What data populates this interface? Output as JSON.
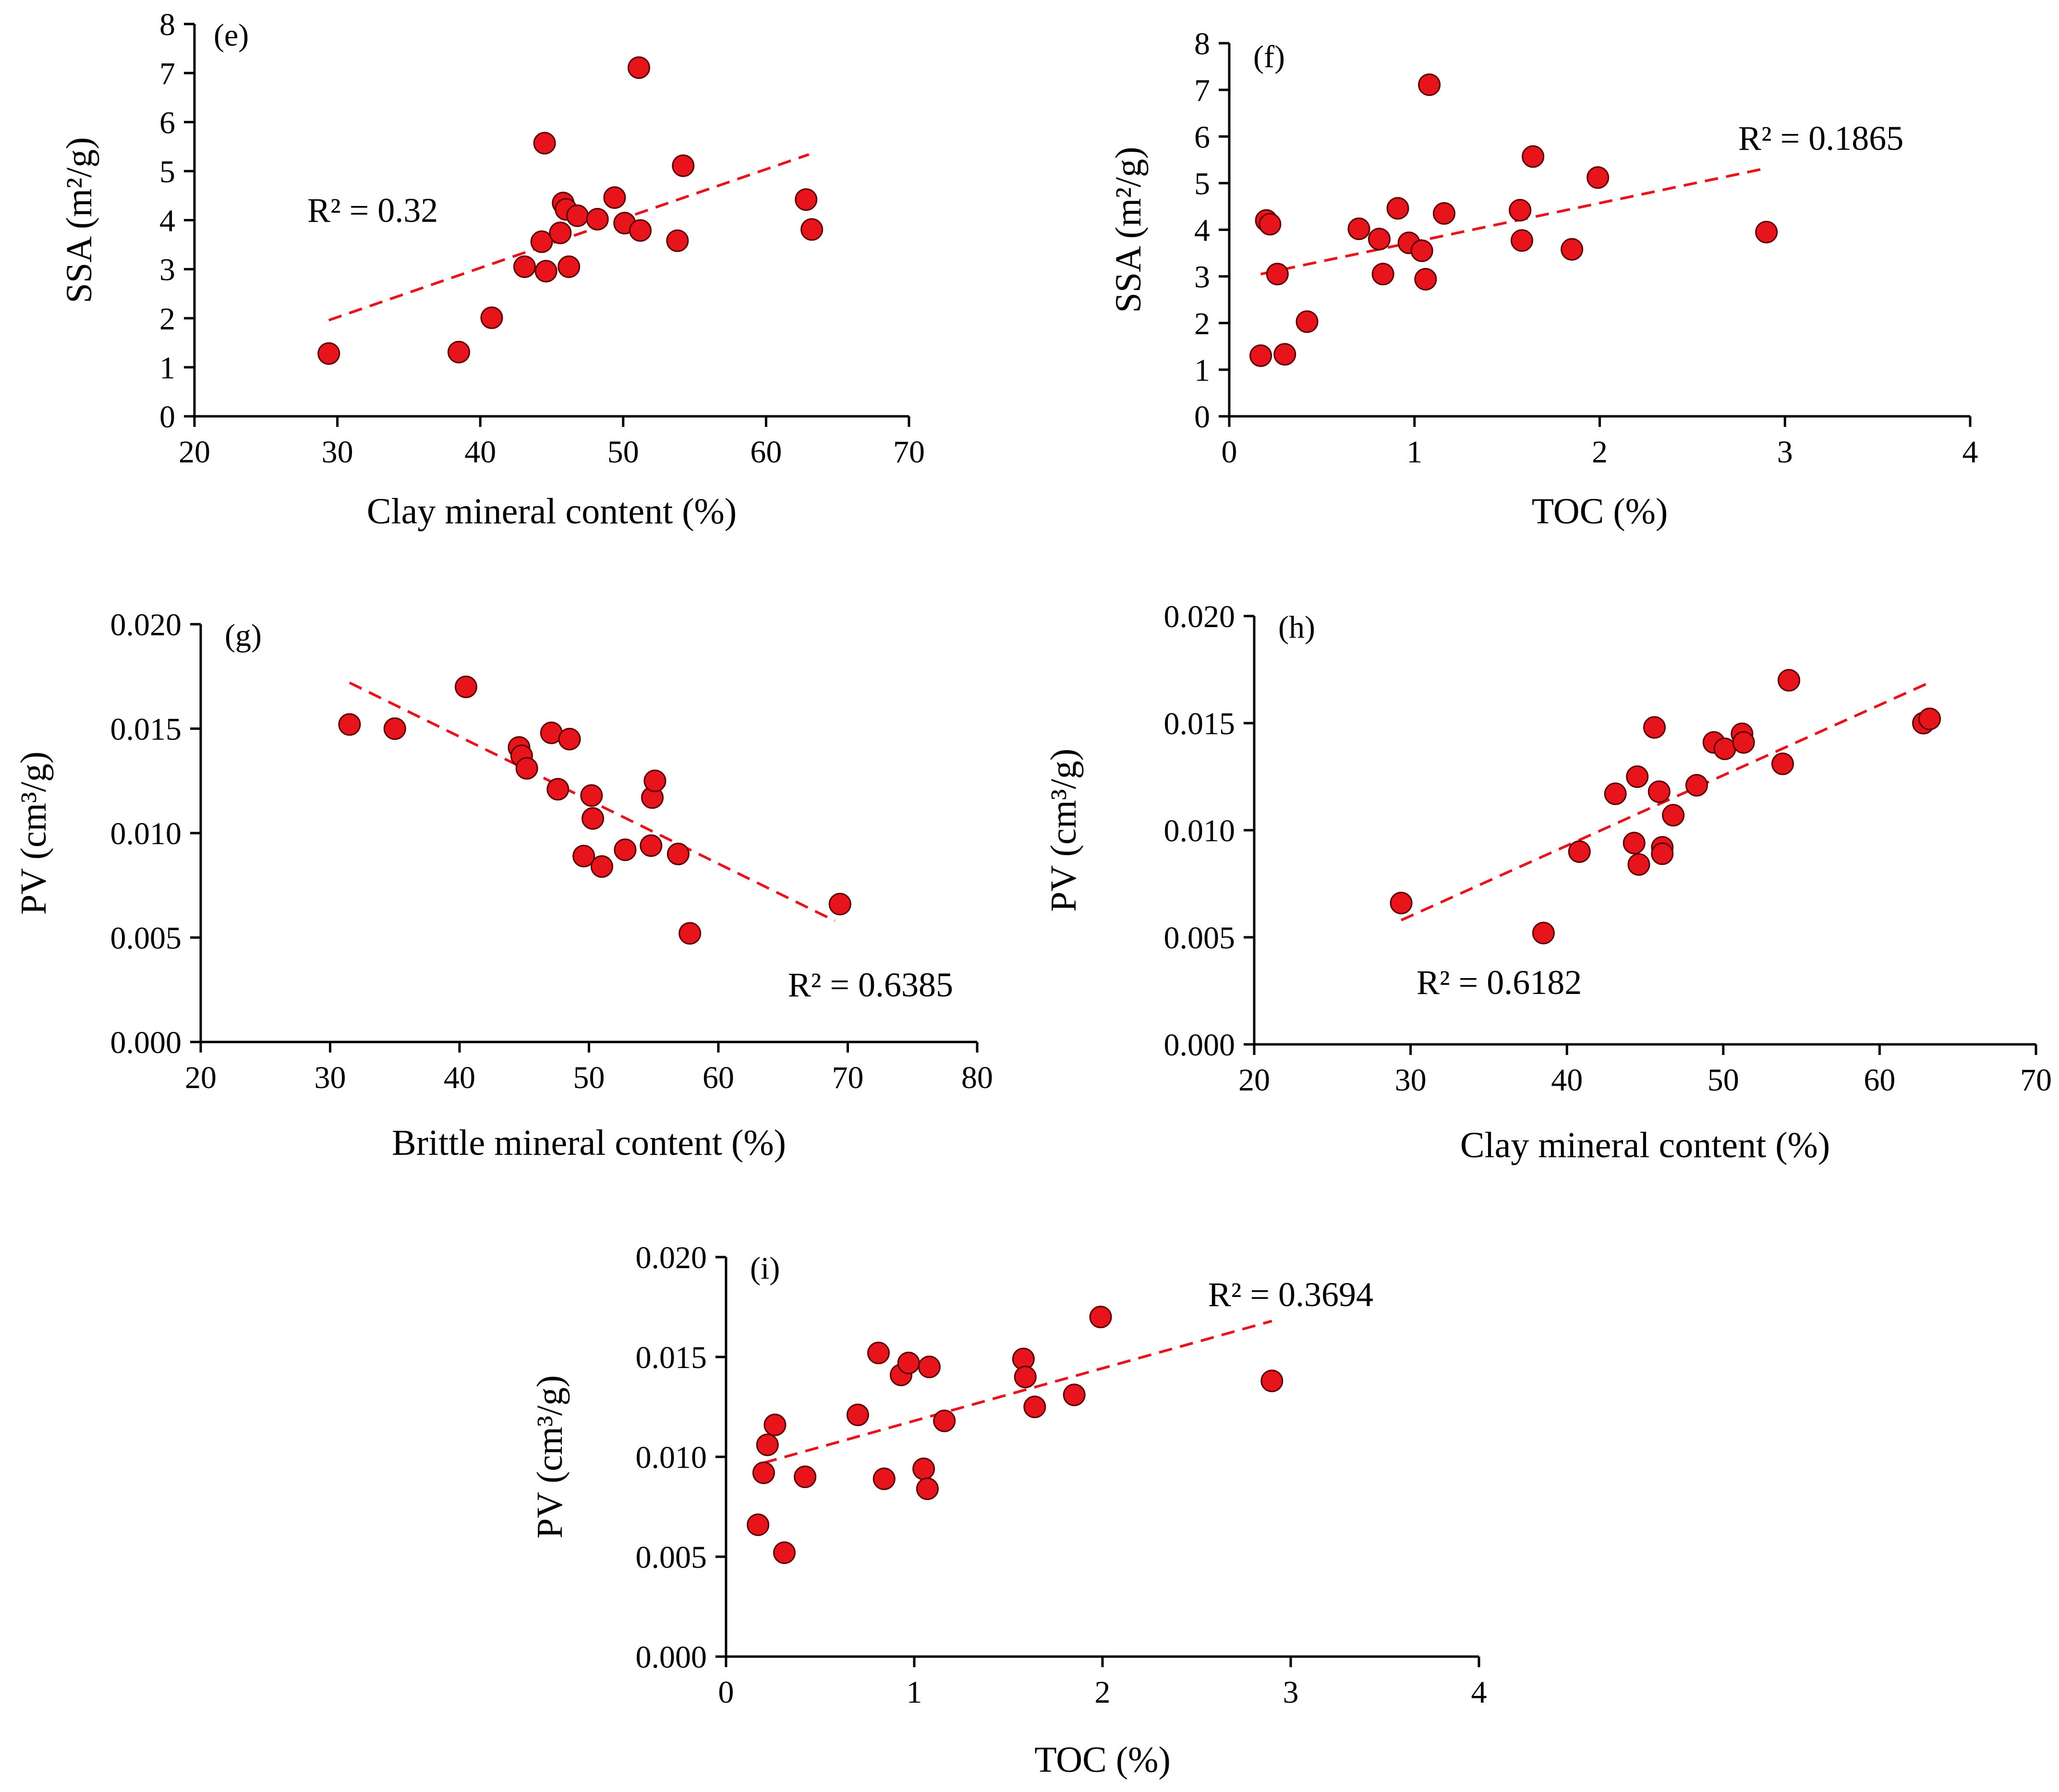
{
  "colors": {
    "marker_fill": "#e8141b",
    "marker_edge": "#5a0000",
    "trendline": "#e8141b",
    "axis": "#000000",
    "background": "#ffffff"
  },
  "chart_data": [
    {
      "id": "e",
      "type": "scatter",
      "panel_label": "(e)",
      "xlabel": "Clay mineral content (%)",
      "ylabel": "SSA (m²/g)",
      "xlim": [
        20,
        70
      ],
      "ylim": [
        0,
        8
      ],
      "xticks": [
        20,
        30,
        40,
        50,
        60,
        70
      ],
      "yticks": [
        0,
        1,
        2,
        3,
        4,
        5,
        6,
        7,
        8
      ],
      "ytick_decimals": 0,
      "r2_label": "R² = 0.32",
      "trendline": {
        "x": [
          29.4,
          63.0
        ],
        "y": [
          1.96,
          5.34
        ]
      },
      "points": [
        {
          "x": 29.4,
          "y": 1.28
        },
        {
          "x": 38.5,
          "y": 1.31
        },
        {
          "x": 40.8,
          "y": 2.01
        },
        {
          "x": 43.1,
          "y": 3.05
        },
        {
          "x": 44.3,
          "y": 3.56
        },
        {
          "x": 44.5,
          "y": 5.57
        },
        {
          "x": 44.6,
          "y": 2.96
        },
        {
          "x": 45.6,
          "y": 3.74
        },
        {
          "x": 45.8,
          "y": 4.35
        },
        {
          "x": 46.0,
          "y": 4.22
        },
        {
          "x": 46.2,
          "y": 3.05
        },
        {
          "x": 46.8,
          "y": 4.09
        },
        {
          "x": 48.2,
          "y": 4.02
        },
        {
          "x": 49.4,
          "y": 4.46
        },
        {
          "x": 50.1,
          "y": 3.94
        },
        {
          "x": 51.1,
          "y": 7.11
        },
        {
          "x": 51.2,
          "y": 3.79
        },
        {
          "x": 53.8,
          "y": 3.58
        },
        {
          "x": 54.2,
          "y": 5.11
        },
        {
          "x": 62.8,
          "y": 4.42
        },
        {
          "x": 63.2,
          "y": 3.81
        }
      ]
    },
    {
      "id": "f",
      "type": "scatter",
      "panel_label": "(f)",
      "xlabel": "TOC (%)",
      "ylabel": "SSA (m²/g)",
      "xlim": [
        0,
        4
      ],
      "ylim": [
        0,
        8
      ],
      "xticks": [
        0,
        1,
        2,
        3,
        4
      ],
      "yticks": [
        0,
        1,
        2,
        3,
        4,
        5,
        6,
        7,
        8
      ],
      "ytick_decimals": 0,
      "r2_label": "R² = 0.1865",
      "trendline": {
        "x": [
          0.17,
          2.9
        ],
        "y": [
          3.05,
          5.32
        ]
      },
      "points": [
        {
          "x": 0.17,
          "y": 1.3
        },
        {
          "x": 0.2,
          "y": 4.2
        },
        {
          "x": 0.22,
          "y": 4.12
        },
        {
          "x": 0.26,
          "y": 3.05
        },
        {
          "x": 0.3,
          "y": 1.33
        },
        {
          "x": 0.42,
          "y": 2.03
        },
        {
          "x": 0.7,
          "y": 4.02
        },
        {
          "x": 0.81,
          "y": 3.8
        },
        {
          "x": 0.83,
          "y": 3.05
        },
        {
          "x": 0.91,
          "y": 4.46
        },
        {
          "x": 0.97,
          "y": 3.72
        },
        {
          "x": 1.04,
          "y": 3.55
        },
        {
          "x": 1.06,
          "y": 2.94
        },
        {
          "x": 1.08,
          "y": 7.11
        },
        {
          "x": 1.16,
          "y": 4.35
        },
        {
          "x": 1.57,
          "y": 4.42
        },
        {
          "x": 1.58,
          "y": 3.77
        },
        {
          "x": 1.64,
          "y": 5.57
        },
        {
          "x": 1.85,
          "y": 3.58
        },
        {
          "x": 1.99,
          "y": 5.12
        },
        {
          "x": 2.9,
          "y": 3.95
        }
      ]
    },
    {
      "id": "g",
      "type": "scatter",
      "panel_label": "(g)",
      "xlabel": "Brittle mineral content (%)",
      "ylabel": "PV (cm³/g)",
      "xlim": [
        20,
        80
      ],
      "ylim": [
        0,
        0.02
      ],
      "xticks": [
        20,
        30,
        40,
        50,
        60,
        70,
        80
      ],
      "yticks": [
        0,
        0.005,
        0.01,
        0.015,
        0.02
      ],
      "ytick_decimals": 3,
      "r2_label": "R² = 0.6385",
      "trendline": {
        "x": [
          31.5,
          69.0
        ],
        "y": [
          0.0172,
          0.0058
        ]
      },
      "points": [
        {
          "x": 31.5,
          "y": 0.0152
        },
        {
          "x": 35.0,
          "y": 0.015
        },
        {
          "x": 40.5,
          "y": 0.017
        },
        {
          "x": 44.6,
          "y": 0.0141
        },
        {
          "x": 44.8,
          "y": 0.0137
        },
        {
          "x": 45.2,
          "y": 0.0131
        },
        {
          "x": 47.1,
          "y": 0.0148
        },
        {
          "x": 47.6,
          "y": 0.0121
        },
        {
          "x": 48.5,
          "y": 0.0145
        },
        {
          "x": 49.6,
          "y": 0.0089
        },
        {
          "x": 50.2,
          "y": 0.0118
        },
        {
          "x": 50.3,
          "y": 0.0107
        },
        {
          "x": 51.0,
          "y": 0.0084
        },
        {
          "x": 52.8,
          "y": 0.0092
        },
        {
          "x": 54.8,
          "y": 0.0094
        },
        {
          "x": 54.9,
          "y": 0.0117
        },
        {
          "x": 55.1,
          "y": 0.0125
        },
        {
          "x": 56.9,
          "y": 0.009
        },
        {
          "x": 57.8,
          "y": 0.0052
        },
        {
          "x": 69.4,
          "y": 0.0066
        }
      ]
    },
    {
      "id": "h",
      "type": "scatter",
      "panel_label": "(h)",
      "xlabel": "Clay mineral content (%)",
      "ylabel": "PV (cm³/g)",
      "xlim": [
        20,
        70
      ],
      "ylim": [
        0,
        0.02
      ],
      "xticks": [
        20,
        30,
        40,
        50,
        60,
        70
      ],
      "yticks": [
        0,
        0.005,
        0.01,
        0.015,
        0.02
      ],
      "ytick_decimals": 3,
      "r2_label": "R² = 0.6182",
      "trendline": {
        "x": [
          29.4,
          63.2
        ],
        "y": [
          0.0058,
          0.0169
        ]
      },
      "points": [
        {
          "x": 29.4,
          "y": 0.0066
        },
        {
          "x": 38.5,
          "y": 0.0052
        },
        {
          "x": 40.8,
          "y": 0.009
        },
        {
          "x": 43.1,
          "y": 0.0117
        },
        {
          "x": 44.3,
          "y": 0.0094
        },
        {
          "x": 44.5,
          "y": 0.0125
        },
        {
          "x": 44.6,
          "y": 0.0084
        },
        {
          "x": 45.6,
          "y": 0.0148
        },
        {
          "x": 45.9,
          "y": 0.0118
        },
        {
          "x": 46.1,
          "y": 0.0092
        },
        {
          "x": 46.1,
          "y": 0.0089
        },
        {
          "x": 46.8,
          "y": 0.0107
        },
        {
          "x": 48.3,
          "y": 0.0121
        },
        {
          "x": 49.4,
          "y": 0.0141
        },
        {
          "x": 50.1,
          "y": 0.0138
        },
        {
          "x": 51.2,
          "y": 0.0145
        },
        {
          "x": 51.3,
          "y": 0.0141
        },
        {
          "x": 53.8,
          "y": 0.0131
        },
        {
          "x": 54.2,
          "y": 0.017
        },
        {
          "x": 62.8,
          "y": 0.015
        },
        {
          "x": 63.2,
          "y": 0.0152
        }
      ]
    },
    {
      "id": "i",
      "type": "scatter",
      "panel_label": "(i)",
      "xlabel": "TOC (%)",
      "ylabel": "PV (cm³/g)",
      "xlim": [
        0,
        4
      ],
      "ylim": [
        0,
        0.02
      ],
      "xticks": [
        0,
        1,
        2,
        3,
        4
      ],
      "yticks": [
        0,
        0.005,
        0.01,
        0.015,
        0.02
      ],
      "ytick_decimals": 3,
      "r2_label": "R² = 0.3694",
      "trendline": {
        "x": [
          0.2,
          2.9
        ],
        "y": [
          0.0097,
          0.0168
        ]
      },
      "points": [
        {
          "x": 0.17,
          "y": 0.0066
        },
        {
          "x": 0.2,
          "y": 0.0092
        },
        {
          "x": 0.22,
          "y": 0.0106
        },
        {
          "x": 0.26,
          "y": 0.0116
        },
        {
          "x": 0.31,
          "y": 0.0052
        },
        {
          "x": 0.42,
          "y": 0.009
        },
        {
          "x": 0.7,
          "y": 0.0121
        },
        {
          "x": 0.81,
          "y": 0.0152
        },
        {
          "x": 0.84,
          "y": 0.0089
        },
        {
          "x": 0.93,
          "y": 0.0141
        },
        {
          "x": 0.97,
          "y": 0.0147
        },
        {
          "x": 1.05,
          "y": 0.0094
        },
        {
          "x": 1.07,
          "y": 0.0084
        },
        {
          "x": 1.08,
          "y": 0.0145
        },
        {
          "x": 1.16,
          "y": 0.0118
        },
        {
          "x": 1.58,
          "y": 0.0149
        },
        {
          "x": 1.59,
          "y": 0.014
        },
        {
          "x": 1.64,
          "y": 0.0125
        },
        {
          "x": 1.85,
          "y": 0.0131
        },
        {
          "x": 1.99,
          "y": 0.017
        },
        {
          "x": 2.9,
          "y": 0.0138
        }
      ]
    }
  ]
}
